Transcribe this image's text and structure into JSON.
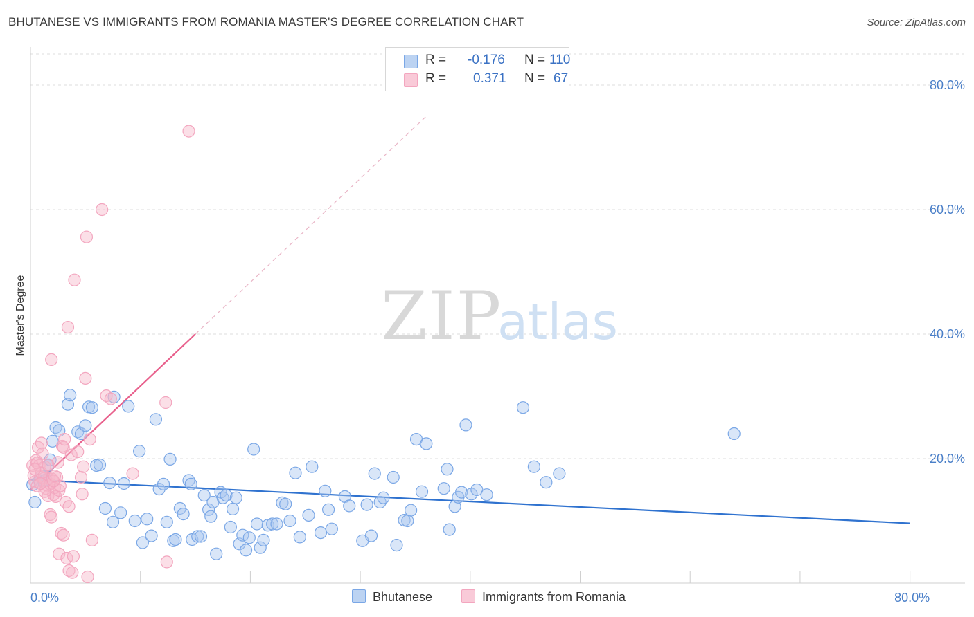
{
  "title": "BHUTANESE VS IMMIGRANTS FROM ROMANIA MASTER'S DEGREE CORRELATION CHART",
  "source": "Source: ZipAtlas.com",
  "watermark": {
    "zip": "ZIP",
    "atlas": "atlas"
  },
  "legend": {
    "rows": [
      {
        "r_label": "R =",
        "r_value": "-0.176",
        "n_label": "N =",
        "n_value": "110",
        "color": "#a9c8f0"
      },
      {
        "r_label": "R =",
        "r_value": "0.371",
        "n_label": "N =",
        "n_value": "67",
        "color": "#f6b8c9"
      }
    ]
  },
  "bottom_legend": {
    "series1": "Bhutanese",
    "series2": "Immigrants from Romania"
  },
  "chart_data": {
    "type": "scatter",
    "title": "BHUTANESE VS IMMIGRANTS FROM ROMANIA MASTER'S DEGREE CORRELATION CHART",
    "ylabel": "Master's Degree",
    "xlabel": "",
    "xlim": [
      0,
      85
    ],
    "ylim": [
      0,
      85
    ],
    "x_ticks": [
      {
        "value": 0,
        "label": "0.0%"
      },
      {
        "value": 80,
        "label": "80.0%"
      }
    ],
    "y_ticks": [
      {
        "value": 20,
        "label": "20.0%"
      },
      {
        "value": 40,
        "label": "40.0%"
      },
      {
        "value": 60,
        "label": "60.0%"
      },
      {
        "value": 80,
        "label": "80.0%"
      }
    ],
    "series": [
      {
        "name": "Bhutanese",
        "color": "#7aa7e6",
        "line_color": "#2f72cf",
        "trend": {
          "x0": 0,
          "y0": 16.6,
          "x1": 80,
          "y1": 9.6,
          "solid_to": 80
        },
        "points": [
          [
            0.4,
            13
          ],
          [
            0.8,
            16.5
          ],
          [
            1.0,
            17.2
          ],
          [
            1.2,
            16.4
          ],
          [
            1.4,
            16.6
          ],
          [
            1.6,
            18.9
          ],
          [
            1.8,
            19.8
          ],
          [
            2.0,
            22.8
          ],
          [
            2.3,
            25.0
          ],
          [
            2.6,
            24.5
          ],
          [
            3.4,
            28.7
          ],
          [
            3.6,
            30.2
          ],
          [
            4.3,
            24.3
          ],
          [
            4.6,
            24.0
          ],
          [
            5.0,
            25.3
          ],
          [
            5.3,
            28.3
          ],
          [
            5.6,
            28.2
          ],
          [
            6.0,
            18.9
          ],
          [
            6.3,
            19.0
          ],
          [
            6.8,
            12.0
          ],
          [
            7.2,
            16.1
          ],
          [
            7.5,
            9.8
          ],
          [
            7.6,
            29.9
          ],
          [
            8.2,
            11.3
          ],
          [
            8.5,
            16.0
          ],
          [
            8.9,
            28.4
          ],
          [
            9.5,
            10.0
          ],
          [
            9.9,
            21.2
          ],
          [
            10.2,
            6.5
          ],
          [
            10.6,
            10.3
          ],
          [
            11.0,
            7.6
          ],
          [
            11.4,
            26.3
          ],
          [
            11.7,
            15.1
          ],
          [
            12.1,
            15.9
          ],
          [
            12.4,
            9.8
          ],
          [
            12.7,
            19.9
          ],
          [
            13.0,
            6.8
          ],
          [
            13.2,
            7.0
          ],
          [
            13.6,
            12.0
          ],
          [
            13.9,
            11.1
          ],
          [
            14.4,
            16.5
          ],
          [
            14.6,
            15.9
          ],
          [
            14.7,
            7.0
          ],
          [
            15.2,
            7.5
          ],
          [
            15.5,
            7.5
          ],
          [
            15.8,
            14.1
          ],
          [
            16.2,
            11.8
          ],
          [
            16.4,
            10.7
          ],
          [
            16.6,
            13.0
          ],
          [
            16.9,
            4.7
          ],
          [
            17.3,
            14.6
          ],
          [
            17.5,
            13.7
          ],
          [
            17.8,
            14.1
          ],
          [
            18.2,
            9.0
          ],
          [
            18.4,
            11.9
          ],
          [
            18.7,
            13.7
          ],
          [
            19.0,
            6.3
          ],
          [
            19.3,
            7.7
          ],
          [
            19.6,
            5.3
          ],
          [
            19.9,
            7.3
          ],
          [
            20.3,
            21.5
          ],
          [
            20.6,
            9.5
          ],
          [
            20.9,
            5.7
          ],
          [
            21.2,
            6.9
          ],
          [
            21.6,
            9.3
          ],
          [
            22.0,
            9.5
          ],
          [
            22.4,
            9.5
          ],
          [
            22.9,
            12.9
          ],
          [
            23.2,
            12.7
          ],
          [
            23.6,
            10.0
          ],
          [
            24.1,
            17.7
          ],
          [
            24.5,
            7.4
          ],
          [
            25.3,
            10.9
          ],
          [
            25.6,
            18.7
          ],
          [
            26.4,
            8.1
          ],
          [
            26.8,
            14.8
          ],
          [
            27.1,
            11.8
          ],
          [
            27.4,
            8.7
          ],
          [
            28.6,
            13.9
          ],
          [
            29.0,
            12.4
          ],
          [
            30.2,
            6.8
          ],
          [
            30.6,
            12.6
          ],
          [
            31.0,
            7.6
          ],
          [
            31.3,
            17.6
          ],
          [
            31.8,
            13.0
          ],
          [
            32.1,
            13.7
          ],
          [
            33.0,
            17.0
          ],
          [
            33.3,
            6.1
          ],
          [
            34.0,
            10.1
          ],
          [
            34.3,
            10.0
          ],
          [
            34.6,
            11.7
          ],
          [
            35.1,
            23.1
          ],
          [
            35.6,
            14.7
          ],
          [
            36.0,
            22.4
          ],
          [
            37.6,
            15.2
          ],
          [
            37.9,
            18.3
          ],
          [
            38.1,
            8.6
          ],
          [
            38.6,
            12.3
          ],
          [
            38.9,
            13.8
          ],
          [
            39.2,
            14.6
          ],
          [
            39.6,
            25.4
          ],
          [
            40.1,
            14.3
          ],
          [
            40.6,
            15.0
          ],
          [
            41.5,
            14.2
          ],
          [
            44.8,
            28.2
          ],
          [
            45.8,
            18.7
          ],
          [
            46.9,
            16.2
          ],
          [
            48.1,
            17.6
          ],
          [
            64.0,
            24.0
          ],
          [
            0.2,
            15.8
          ]
        ]
      },
      {
        "name": "Immigrants from Romania",
        "color": "#f3a6bf",
        "line_color": "#e8608c",
        "trend": {
          "x0": 0,
          "y0": 15.0,
          "x1": 36,
          "y1": 75.0,
          "solid_to": 15
        },
        "points": [
          [
            0.2,
            18.9
          ],
          [
            0.3,
            17.3
          ],
          [
            0.4,
            16.3
          ],
          [
            0.5,
            19.7
          ],
          [
            0.6,
            15.6
          ],
          [
            0.7,
            21.8
          ],
          [
            0.8,
            18.9
          ],
          [
            0.9,
            17.1
          ],
          [
            1.0,
            22.5
          ],
          [
            1.1,
            20.8
          ],
          [
            1.2,
            16.8
          ],
          [
            1.3,
            18.7
          ],
          [
            1.4,
            15.2
          ],
          [
            1.5,
            15.7
          ],
          [
            1.6,
            14.0
          ],
          [
            1.7,
            16.8
          ],
          [
            1.8,
            15.9
          ],
          [
            1.8,
            11.0
          ],
          [
            1.9,
            10.6
          ],
          [
            1.9,
            35.9
          ],
          [
            2.0,
            16.7
          ],
          [
            2.1,
            14.2
          ],
          [
            2.2,
            15.3
          ],
          [
            2.3,
            13.9
          ],
          [
            2.4,
            17.0
          ],
          [
            2.5,
            19.4
          ],
          [
            2.6,
            14.9
          ],
          [
            2.6,
            4.7
          ],
          [
            2.7,
            15.6
          ],
          [
            2.8,
            8.0
          ],
          [
            2.9,
            22.0
          ],
          [
            3.0,
            21.8
          ],
          [
            3.0,
            7.7
          ],
          [
            3.1,
            23.1
          ],
          [
            3.2,
            13.0
          ],
          [
            3.3,
            4.0
          ],
          [
            3.4,
            41.1
          ],
          [
            3.5,
            2.0
          ],
          [
            3.5,
            12.3
          ],
          [
            3.7,
            20.6
          ],
          [
            3.8,
            1.7
          ],
          [
            3.9,
            4.3
          ],
          [
            4.0,
            48.7
          ],
          [
            4.3,
            21.1
          ],
          [
            4.6,
            17.0
          ],
          [
            4.7,
            14.3
          ],
          [
            4.8,
            18.7
          ],
          [
            5.0,
            32.9
          ],
          [
            5.1,
            55.6
          ],
          [
            5.2,
            1.0
          ],
          [
            5.4,
            23.1
          ],
          [
            5.6,
            6.9
          ],
          [
            6.5,
            60.0
          ],
          [
            6.9,
            30.1
          ],
          [
            7.3,
            29.6
          ],
          [
            9.3,
            17.6
          ],
          [
            12.3,
            29.0
          ],
          [
            12.4,
            3.4
          ],
          [
            14.4,
            72.6
          ],
          [
            0.6,
            19.3
          ],
          [
            1.0,
            17.7
          ],
          [
            1.3,
            14.7
          ],
          [
            2.1,
            16.4
          ],
          [
            0.4,
            18.3
          ],
          [
            0.9,
            16.0
          ],
          [
            1.6,
            19.0
          ],
          [
            2.2,
            17.2
          ]
        ]
      }
    ]
  }
}
